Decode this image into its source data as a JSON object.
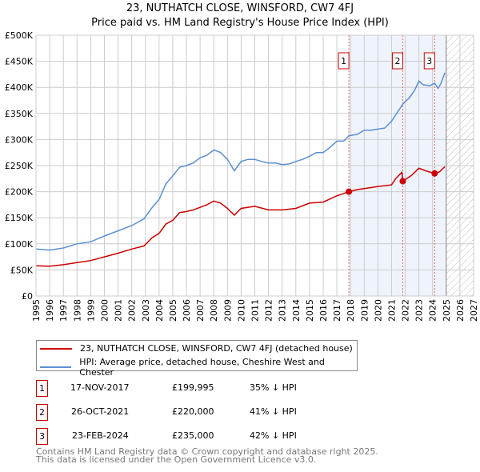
{
  "chart_data": {
    "type": "line",
    "title": "23, NUTHATCH CLOSE, WINSFORD, CW7 4FJ",
    "subtitle": "Price paid vs. HM Land Registry's House Price Index (HPI)",
    "xlim": [
      1995,
      2027
    ],
    "ylim": [
      0,
      500000
    ],
    "x_ticks": [
      "1995",
      "1996",
      "1997",
      "1998",
      "1999",
      "2000",
      "2001",
      "2002",
      "2003",
      "2004",
      "2005",
      "2006",
      "2007",
      "2008",
      "2009",
      "2010",
      "2011",
      "2012",
      "2013",
      "2014",
      "2015",
      "2016",
      "2017",
      "2018",
      "2019",
      "2020",
      "2021",
      "2022",
      "2023",
      "2024",
      "2025",
      "2026",
      "2027"
    ],
    "y_ticks": [
      {
        "v": 0,
        "label": "£0"
      },
      {
        "v": 50000,
        "label": "£50K"
      },
      {
        "v": 100000,
        "label": "£100K"
      },
      {
        "v": 150000,
        "label": "£150K"
      },
      {
        "v": 200000,
        "label": "£200K"
      },
      {
        "v": 250000,
        "label": "£250K"
      },
      {
        "v": 300000,
        "label": "£300K"
      },
      {
        "v": 350000,
        "label": "£350K"
      },
      {
        "v": 400000,
        "label": "£400K"
      },
      {
        "v": 450000,
        "label": "£450K"
      },
      {
        "v": 500000,
        "label": "£500K"
      }
    ],
    "grid": true,
    "forecast_start": 2025,
    "series": [
      {
        "name": "23, NUTHATCH CLOSE, WINSFORD, CW7 4FJ (detached house)",
        "color": "#cc0000",
        "x": [
          1995,
          1996,
          1997,
          1998,
          1999,
          2000,
          2001,
          2002,
          2002.9,
          2003.5,
          2004,
          2004.5,
          2005,
          2005.5,
          2006,
          2006.5,
          2007,
          2007.5,
          2008,
          2008.5,
          2009,
          2009.5,
          2010,
          2011,
          2012,
          2013,
          2014,
          2015,
          2016,
          2016.5,
          2017,
          2017.88,
          2018.5,
          2019,
          2020,
          2021,
          2021.3,
          2021.75,
          2021.82,
          2022.5,
          2023,
          2023.5,
          2024.15,
          2024.5,
          2024.9
        ],
        "y": [
          58000,
          57000,
          60000,
          64000,
          68000,
          75000,
          82000,
          90000,
          96000,
          112000,
          120000,
          138000,
          145000,
          160000,
          162000,
          165000,
          170000,
          175000,
          182000,
          178000,
          168000,
          155000,
          168000,
          172000,
          165000,
          165000,
          168000,
          178000,
          180000,
          186000,
          192000,
          199995,
          204000,
          206000,
          210000,
          213000,
          225000,
          237000,
          220000,
          232000,
          245000,
          240000,
          235000,
          238000,
          248000
        ]
      },
      {
        "name": "HPI: Average price, detached house, Cheshire West and Chester",
        "color": "#5b8fd4",
        "x": [
          1995,
          1996,
          1997,
          1998,
          1999,
          2000,
          2001,
          2002,
          2002.9,
          2003.5,
          2004,
          2004.5,
          2005,
          2005.5,
          2006,
          2006.5,
          2007,
          2007.5,
          2008,
          2008.5,
          2009,
          2009.5,
          2010,
          2010.5,
          2011,
          2011.5,
          2012,
          2012.5,
          2013,
          2013.5,
          2014,
          2014.5,
          2015,
          2015.5,
          2016,
          2016.5,
          2017,
          2017.5,
          2017.88,
          2018.5,
          2019,
          2019.5,
          2020,
          2020.5,
          2021,
          2021.5,
          2021.82,
          2022.3,
          2022.7,
          2023,
          2023.3,
          2023.8,
          2024.15,
          2024.4,
          2024.6,
          2024.9
        ],
        "y": [
          90000,
          88000,
          92000,
          100000,
          104000,
          115000,
          125000,
          135000,
          148000,
          170000,
          185000,
          215000,
          230000,
          247000,
          250000,
          255000,
          265000,
          270000,
          280000,
          275000,
          262000,
          240000,
          258000,
          262000,
          262000,
          258000,
          255000,
          255000,
          252000,
          253000,
          258000,
          262000,
          268000,
          275000,
          275000,
          285000,
          297000,
          297000,
          307000,
          310000,
          318000,
          318000,
          320000,
          322000,
          335000,
          355000,
          368000,
          380000,
          395000,
          412000,
          405000,
          403000,
          408000,
          398000,
          407000,
          428000
        ]
      }
    ],
    "sales": [
      {
        "label": "1",
        "x": 2017.88,
        "date": "17-NOV-2017",
        "price": 199995,
        "price_text": "£199,995",
        "hpi_text": "35% ↓ HPI"
      },
      {
        "label": "2",
        "x": 2021.82,
        "date": "26-OCT-2021",
        "price": 220000,
        "price_text": "£220,000",
        "hpi_text": "41% ↓ HPI"
      },
      {
        "label": "3",
        "x": 2024.15,
        "date": "23-FEB-2024",
        "price": 235000,
        "price_text": "£235,000",
        "hpi_text": "42% ↓ HPI"
      }
    ]
  },
  "footer": {
    "line1": "Contains HM Land Registry data © Crown copyright and database right 2025.",
    "line2": "This data is licensed under the Open Government Licence v3.0."
  }
}
